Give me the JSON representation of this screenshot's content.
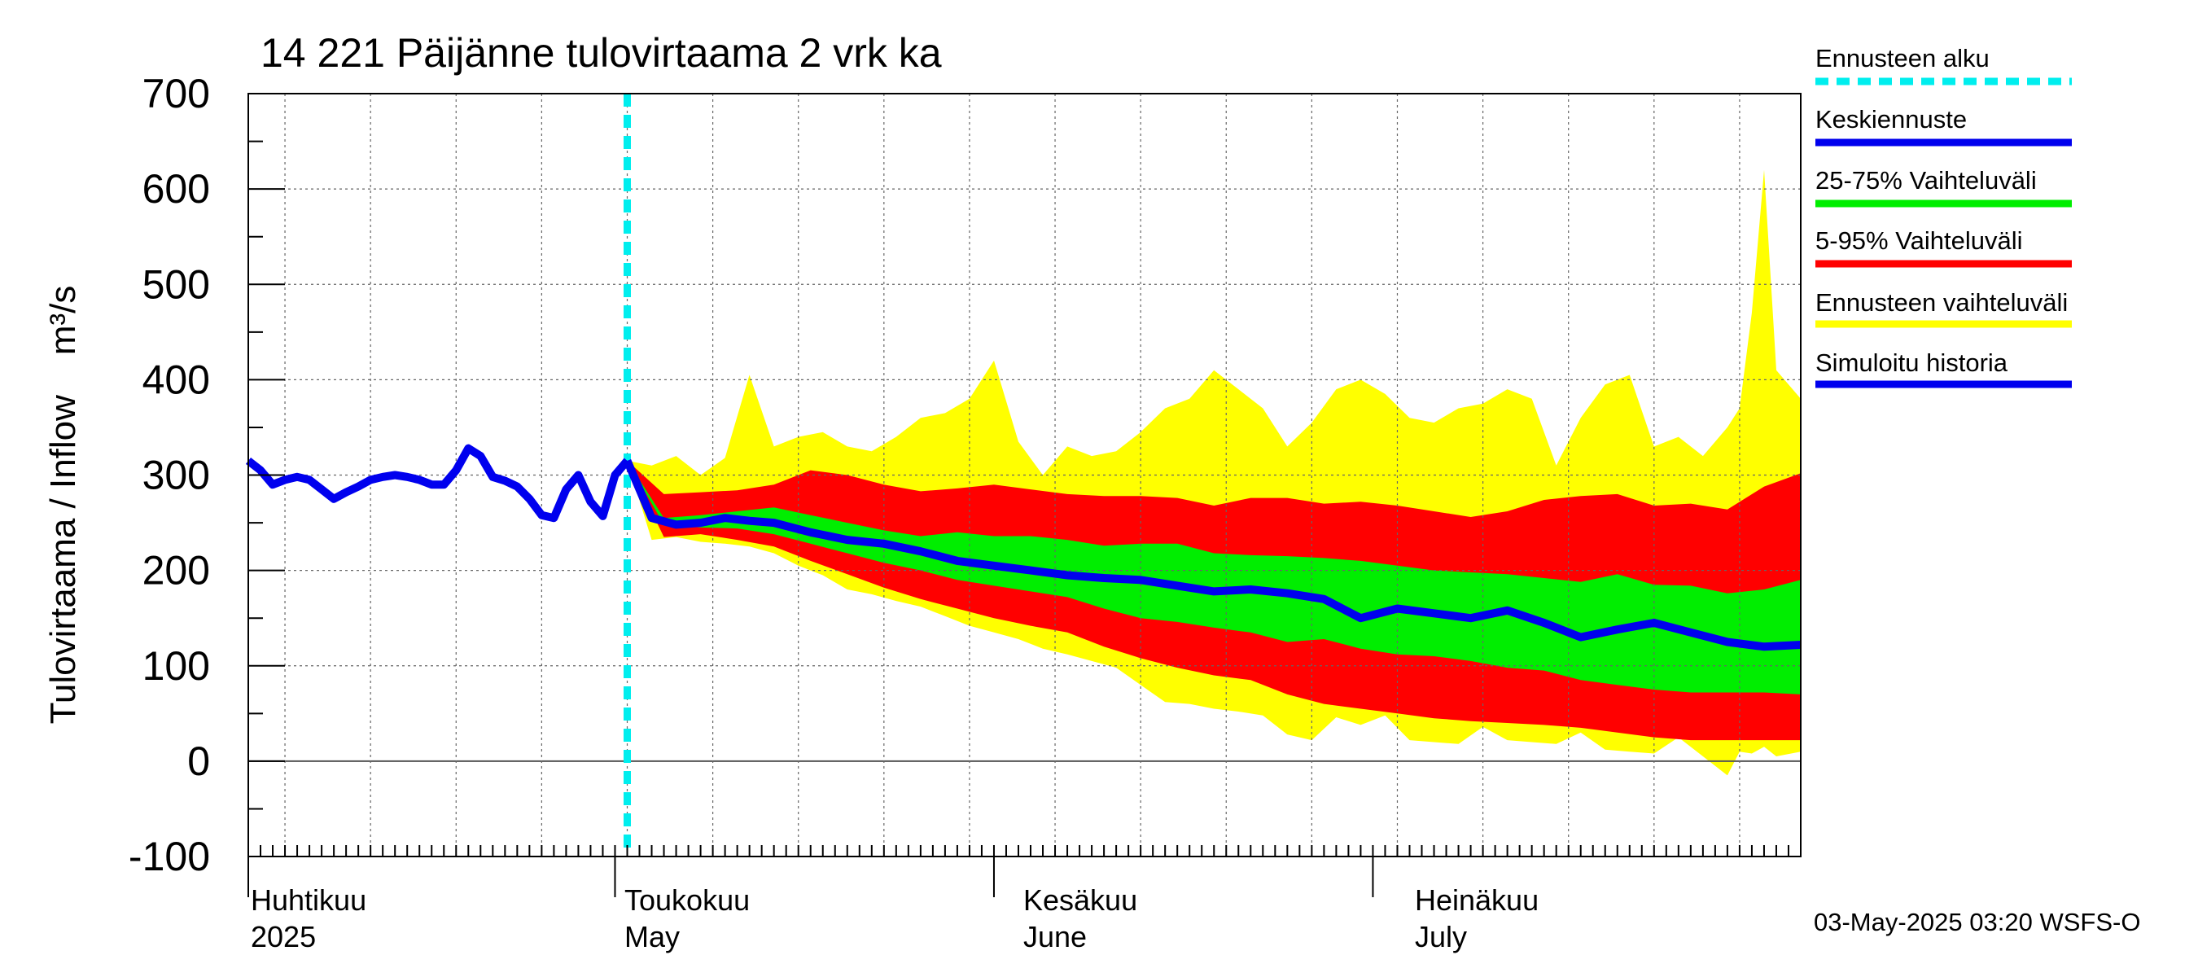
{
  "chart_data": {
    "type": "area",
    "title": "14 221 Päijänne tulovirtaama 2 vrk ka",
    "ylabel": "Tulovirtaama / Inflow    m³/s",
    "ylim": [
      -100,
      700
    ],
    "y_ticks": [
      -100,
      0,
      100,
      200,
      300,
      400,
      500,
      600,
      700
    ],
    "x_range_days": [
      -31,
      96
    ],
    "grid": true,
    "month_labels": [
      {
        "fi": "Huhtikuu",
        "en": "2025"
      },
      {
        "fi": "Toukokuu",
        "en": "May"
      },
      {
        "fi": "Kesäkuu",
        "en": "June"
      },
      {
        "fi": "Heinäkuu",
        "en": "July"
      }
    ],
    "legend_position": "right",
    "forecast_start": "2025-05-01",
    "legend": [
      {
        "label": "Ennusteen alku",
        "color": "#00eeee",
        "style": "dashed"
      },
      {
        "label": "Keskiennuste",
        "color": "#0000ee",
        "style": "solid"
      },
      {
        "label": "25-75% Vaihteluväli",
        "color": "#00ee00",
        "style": "solid"
      },
      {
        "label": "5-95% Vaihteluväli",
        "color": "#ff0000",
        "style": "solid"
      },
      {
        "label": "Ennusteen vaihteluväli",
        "color": "#ffff00",
        "style": "solid"
      },
      {
        "label": "Simuloitu historia",
        "color": "#0000ee",
        "style": "solid"
      }
    ],
    "footer": "03-May-2025 03:20 WSFS-O",
    "history": {
      "x": [
        -31,
        -30,
        -29,
        -28,
        -27,
        -26,
        -25,
        -24,
        -23,
        -22,
        -21,
        -20,
        -19,
        -18,
        -17,
        -16,
        -15,
        -14,
        -13,
        -12,
        -11,
        -10,
        -9,
        -8,
        -7,
        -6,
        -5,
        -4,
        -3,
        -2,
        -1,
        0
      ],
      "y": [
        315,
        305,
        290,
        295,
        298,
        295,
        285,
        275,
        282,
        288,
        295,
        298,
        300,
        298,
        295,
        290,
        290,
        305,
        328,
        320,
        298,
        294,
        288,
        275,
        258,
        255,
        285,
        300,
        272,
        257,
        300,
        315
      ]
    },
    "series": [
      {
        "name": "Keskiennuste",
        "x": [
          0,
          2,
          4,
          6,
          8,
          10,
          12,
          15,
          18,
          21,
          24,
          27,
          30,
          33,
          36,
          39,
          42,
          45,
          48,
          51,
          54,
          57,
          60,
          63,
          66,
          69,
          72,
          75,
          78,
          81,
          84,
          87,
          90,
          93,
          96
        ],
        "values": [
          315,
          255,
          248,
          250,
          255,
          252,
          250,
          240,
          232,
          228,
          220,
          210,
          205,
          200,
          195,
          192,
          190,
          184,
          178,
          180,
          176,
          170,
          150,
          160,
          155,
          150,
          158,
          145,
          130,
          138,
          145,
          135,
          125,
          120,
          122
        ]
      },
      {
        "name": "25-75% Vaihteluväli",
        "x": [
          0,
          3,
          6,
          9,
          12,
          15,
          18,
          21,
          24,
          27,
          30,
          33,
          36,
          39,
          42,
          45,
          48,
          51,
          54,
          57,
          60,
          63,
          66,
          69,
          72,
          75,
          78,
          81,
          84,
          87,
          90,
          93,
          96
        ],
        "low": [
          315,
          248,
          245,
          244,
          238,
          228,
          218,
          208,
          200,
          190,
          184,
          178,
          172,
          160,
          150,
          146,
          140,
          135,
          125,
          128,
          118,
          112,
          110,
          105,
          98,
          95,
          85,
          80,
          75,
          72,
          72,
          72,
          70
        ],
        "high": [
          315,
          255,
          258,
          262,
          266,
          258,
          250,
          242,
          236,
          240,
          236,
          236,
          232,
          226,
          228,
          228,
          218,
          216,
          215,
          213,
          210,
          205,
          200,
          198,
          196,
          192,
          188,
          196,
          185,
          184,
          176,
          180,
          190
        ]
      },
      {
        "name": "5-95% Vaihteluväli",
        "x": [
          0,
          3,
          6,
          9,
          12,
          15,
          18,
          21,
          24,
          27,
          30,
          33,
          36,
          39,
          42,
          45,
          48,
          51,
          54,
          57,
          60,
          63,
          66,
          69,
          72,
          75,
          78,
          81,
          84,
          87,
          90,
          93,
          96
        ],
        "low": [
          315,
          235,
          238,
          232,
          225,
          210,
          196,
          182,
          170,
          160,
          150,
          142,
          135,
          120,
          108,
          98,
          90,
          85,
          70,
          60,
          55,
          50,
          45,
          42,
          40,
          38,
          35,
          30,
          25,
          22,
          22,
          22,
          22
        ],
        "high": [
          315,
          280,
          282,
          284,
          290,
          305,
          300,
          290,
          283,
          286,
          290,
          285,
          280,
          278,
          278,
          276,
          268,
          276,
          276,
          270,
          272,
          268,
          262,
          256,
          262,
          274,
          278,
          280,
          268,
          270,
          264,
          288,
          302
        ]
      },
      {
        "name": "Ennusteen vaihteluväli",
        "x": [
          0,
          2,
          4,
          6,
          8,
          10,
          12,
          14,
          16,
          18,
          20,
          22,
          24,
          26,
          28,
          30,
          32,
          34,
          36,
          38,
          40,
          42,
          44,
          46,
          48,
          50,
          52,
          54,
          56,
          58,
          60,
          62,
          64,
          66,
          68,
          70,
          72,
          74,
          76,
          78,
          80,
          82,
          84,
          86,
          88,
          90,
          91,
          92,
          93,
          94,
          96
        ],
        "low": [
          315,
          232,
          235,
          230,
          228,
          225,
          218,
          205,
          195,
          180,
          175,
          168,
          162,
          152,
          142,
          135,
          128,
          118,
          112,
          105,
          98,
          80,
          62,
          60,
          55,
          52,
          48,
          28,
          22,
          46,
          38,
          48,
          22,
          20,
          18,
          36,
          22,
          20,
          18,
          30,
          12,
          10,
          8,
          25,
          5,
          -15,
          10,
          8,
          15,
          5,
          10
        ],
        "high": [
          315,
          310,
          320,
          300,
          318,
          405,
          330,
          340,
          345,
          330,
          325,
          340,
          360,
          365,
          380,
          420,
          335,
          300,
          330,
          320,
          325,
          345,
          370,
          380,
          410,
          390,
          370,
          330,
          355,
          390,
          400,
          385,
          360,
          355,
          370,
          375,
          390,
          380,
          310,
          360,
          395,
          405,
          330,
          340,
          320,
          350,
          370,
          470,
          620,
          410,
          380
        ]
      }
    ]
  }
}
